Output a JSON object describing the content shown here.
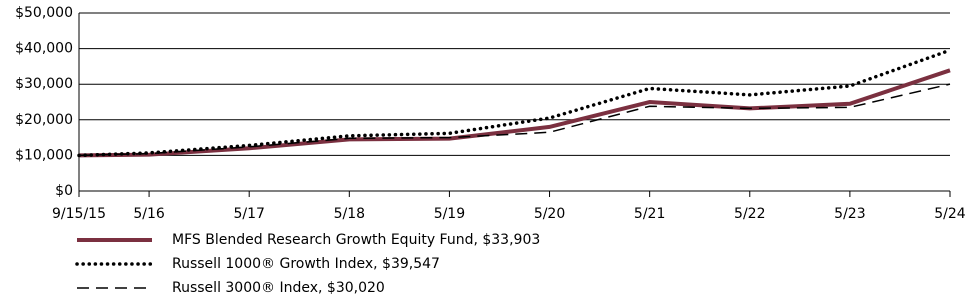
{
  "chart_data": {
    "type": "line",
    "x": [
      2015.71,
      2016.41,
      2017.41,
      2018.41,
      2019.41,
      2020.41,
      2021.41,
      2022.41,
      2023.41,
      2024.41
    ],
    "xlim": [
      2015.71,
      2024.41
    ],
    "xticks": [
      {
        "value": 2015.71,
        "label": "9/15/15"
      },
      {
        "value": 2016.41,
        "label": "5/16"
      },
      {
        "value": 2017.41,
        "label": "5/17"
      },
      {
        "value": 2018.41,
        "label": "5/18"
      },
      {
        "value": 2019.41,
        "label": "5/19"
      },
      {
        "value": 2020.41,
        "label": "5/20"
      },
      {
        "value": 2021.41,
        "label": "5/21"
      },
      {
        "value": 2022.41,
        "label": "5/22"
      },
      {
        "value": 2023.41,
        "label": "5/23"
      },
      {
        "value": 2024.41,
        "label": "5/24"
      }
    ],
    "ylim": [
      0,
      50000
    ],
    "yticks": [
      {
        "value": 0,
        "label": "$0"
      },
      {
        "value": 10000,
        "label": "$10,000"
      },
      {
        "value": 20000,
        "label": "$20,000"
      },
      {
        "value": 30000,
        "label": "$30,000"
      },
      {
        "value": 40000,
        "label": "$40,000"
      },
      {
        "value": 50000,
        "label": "$50,000"
      }
    ],
    "grid": true,
    "series": [
      {
        "name": "MFS Blended Research Growth Equity Fund, $33,903",
        "color": "#7b3040",
        "style": "solid",
        "values": [
          10000,
          10200,
          12000,
          14500,
          14700,
          18000,
          25000,
          23200,
          24500,
          33903
        ]
      },
      {
        "name": "Russell 1000® Growth Index, $39,547",
        "color": "#000000",
        "style": "dotted",
        "values": [
          10000,
          10700,
          12800,
          15500,
          16200,
          20500,
          28800,
          27000,
          29500,
          39547
        ]
      },
      {
        "name": "Russell 3000® Index, $30,020",
        "color": "#000000",
        "style": "dashed",
        "values": [
          10000,
          10500,
          12400,
          14800,
          15000,
          16500,
          23800,
          23200,
          23500,
          30020
        ]
      }
    ]
  }
}
